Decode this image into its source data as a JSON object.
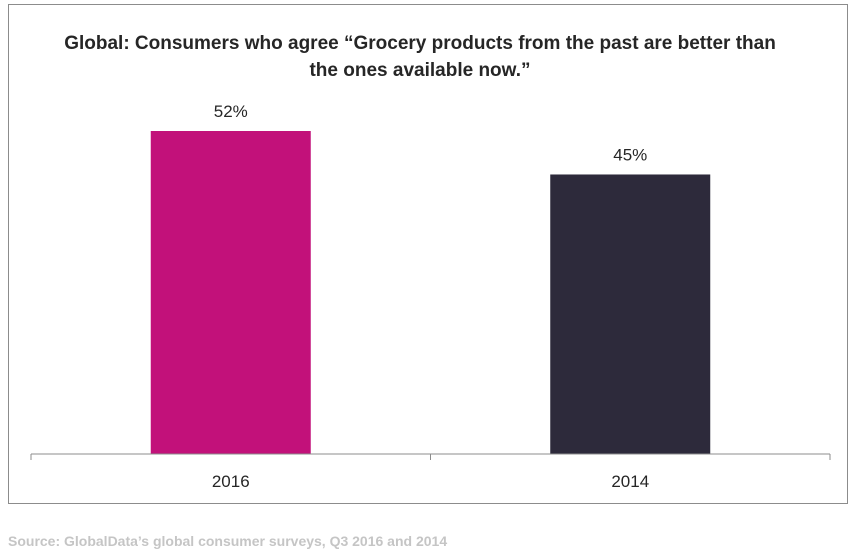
{
  "chart_data": {
    "type": "bar",
    "title": "Global: Consumers who agree “Grocery products from the past are better than the ones available now.”",
    "categories": [
      "2016",
      "2014"
    ],
    "values": [
      52,
      45
    ],
    "value_labels": [
      "52%",
      "45%"
    ],
    "colors": [
      "#c2117a",
      "#2d2a3b"
    ],
    "ylim": [
      0,
      52
    ],
    "grid": false,
    "legend": "none",
    "xlabel": "",
    "ylabel": ""
  },
  "source": "Source: GlobalData’s global consumer surveys, Q3 2016 and 2014"
}
